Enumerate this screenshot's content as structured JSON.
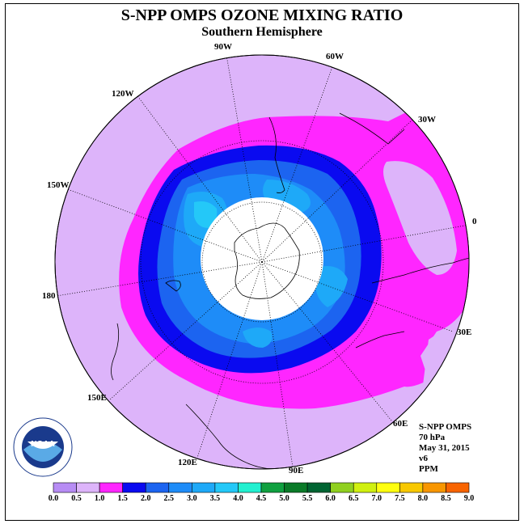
{
  "title": "S-NPP OMPS OZONE MIXING RATIO",
  "subtitle": "Southern Hemisphere",
  "longitude_labels": [
    "90W",
    "60W",
    "120W",
    "30W",
    "150W",
    "0",
    "180",
    "30E",
    "150E",
    "60E",
    "120E",
    "90E"
  ],
  "info": {
    "instrument": "S-NPP OMPS",
    "level": "70 hPa",
    "date": "May 31, 2015",
    "version": "v6",
    "units": "PPM"
  },
  "logo_text": "NOAA",
  "colorbar": {
    "ticks": [
      "0.0",
      "0.5",
      "1.0",
      "1.5",
      "2.0",
      "2.5",
      "3.0",
      "3.5",
      "4.0",
      "4.5",
      "5.0",
      "5.5",
      "6.0",
      "6.5",
      "7.0",
      "7.5",
      "8.0",
      "8.5",
      "9.0"
    ],
    "colors": [
      "#b78cf4",
      "#ddb4fa",
      "#ff26ff",
      "#0a0af0",
      "#1c64f0",
      "#1e8cf8",
      "#1ea9f8",
      "#24c8f8",
      "#22f0d0",
      "#10a040",
      "#0a7a28",
      "#006432",
      "#90d020",
      "#d0f010",
      "#ffff10",
      "#f8c800",
      "#f89600",
      "#f86400",
      "#f81e00",
      "#d81e00",
      "#8c5032"
    ]
  },
  "map_colors": {
    "band_0_5_1_0": "#ddb4fa",
    "band_1_0_1_5": "#ff26ff",
    "band_1_5_2_0": "#0a0af0",
    "band_2_0_2_5": "#1c64f0",
    "band_2_5_3_0": "#1e8cf8",
    "band_3_0_3_5": "#1ea9f8",
    "band_3_5_4_0": "#24c8f8",
    "polar_night": "#ffffff"
  }
}
